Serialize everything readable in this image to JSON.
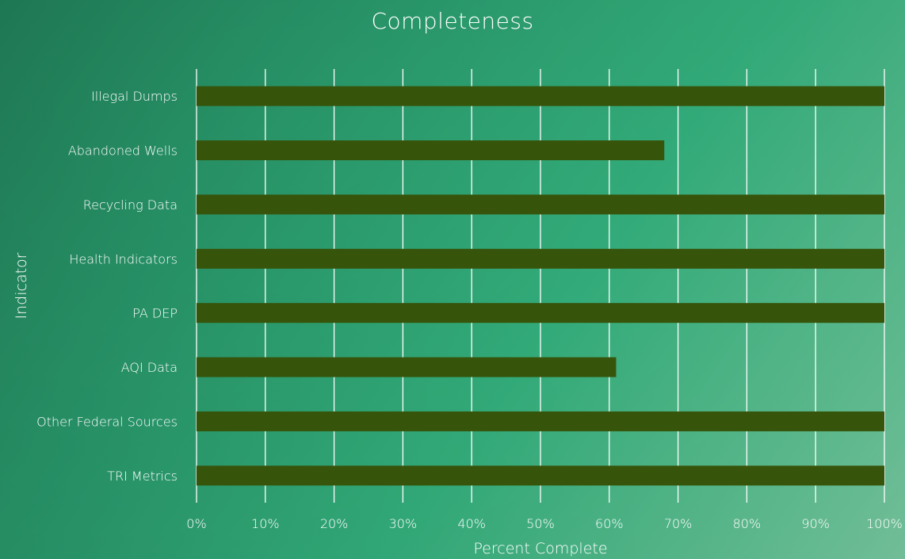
{
  "chart_data": {
    "type": "bar",
    "orientation": "horizontal",
    "title": "Completeness",
    "xlabel": "Percent Complete",
    "ylabel": "Indicator",
    "categories": [
      "Illegal Dumps",
      "Abandoned Wells",
      "Recycling Data",
      "Health Indicators",
      "PA DEP",
      "AQI Data",
      "Other Federal Sources",
      "TRI Metrics"
    ],
    "values": [
      100,
      68,
      100,
      100,
      100,
      61,
      100,
      100
    ],
    "xlim": [
      0,
      100
    ],
    "x_ticks": [
      "0%",
      "10%",
      "20%",
      "30%",
      "40%",
      "50%",
      "60%",
      "70%",
      "80%",
      "90%",
      "100%"
    ],
    "grid": true,
    "bar_color": "#37540b",
    "grid_color": "#ffffff",
    "text_color": "#ffffff"
  }
}
